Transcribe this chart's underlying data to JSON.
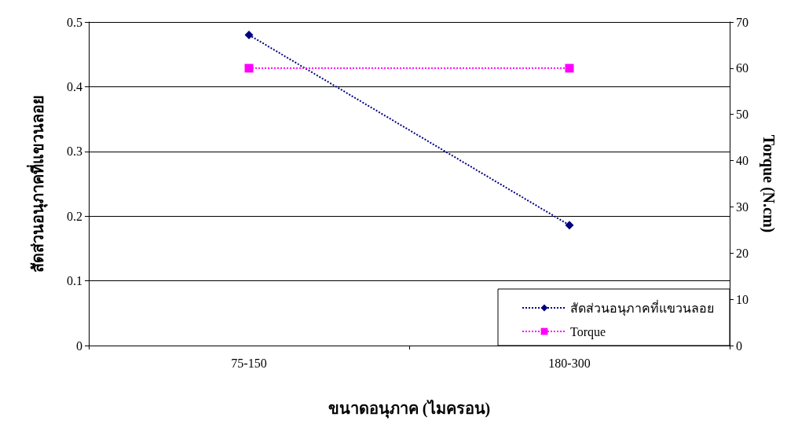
{
  "chart_data": {
    "type": "line",
    "xlabel": "ขนาดอนุภาค (ไมครอน)",
    "ylabel": "สัดส่วนอนุภาคที่แขวนลอย",
    "y2label": "Torque (N.cm)",
    "categories": [
      "75-150",
      "180-300"
    ],
    "series": [
      {
        "name": "สัดส่วนอนุภาคที่แขวนลอย",
        "color": "#000080",
        "values": [
          0.48,
          0.186
        ],
        "marker": "diamond"
      },
      {
        "name": "Torque",
        "color": "#ff00ff",
        "values": [
          60,
          60
        ],
        "marker": "square",
        "axis": "y2"
      }
    ],
    "ylim": [
      0,
      0.5
    ],
    "yticks": [
      0,
      0.1,
      0.2,
      0.3,
      0.4,
      0.5
    ],
    "y2lim": [
      0,
      70
    ],
    "y2ticks": [
      0,
      10,
      20,
      30,
      40,
      50,
      60,
      70
    ],
    "grid": "y",
    "legend": "bottom right",
    "line_style": "dotted"
  }
}
